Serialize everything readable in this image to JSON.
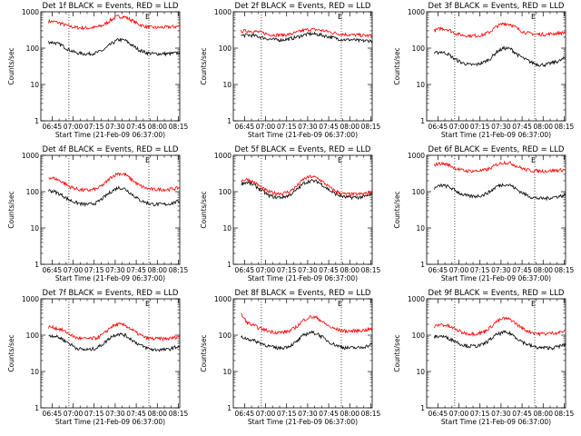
{
  "figure": {
    "panels": [
      {
        "title": "Det 1f BLACK = Events, RED = LLD",
        "flag": "E"
      },
      {
        "title": "Det 2f BLACK = Events, RED = LLD",
        "flag": "E"
      },
      {
        "title": "Det 3f BLACK = Events, RED = LLD",
        "flag": "E"
      },
      {
        "title": "Det 4f BLACK = Events, RED = LLD",
        "flag": "E"
      },
      {
        "title": "Det 5f BLACK = Events, RED = LLD",
        "flag": "E"
      },
      {
        "title": "Det 6f BLACK = Events, RED = LLD",
        "flag": "E"
      },
      {
        "title": "Det 7f BLACK = Events, RED = LLD",
        "flag": "E"
      },
      {
        "title": "Det 8f BLACK = Events, RED = LLD",
        "flag": "E"
      },
      {
        "title": "Det 9f BLACK = Events, RED = LLD",
        "flag": "E"
      }
    ]
  },
  "chart_data": {
    "type": "line",
    "layout": "3x3 grid",
    "xlabel": "Start Time (21-Feb-09 06:37:00)",
    "ylabel": "Counts/sec",
    "x_ticks": [
      "06:45",
      "07:00",
      "07:15",
      "07:30",
      "07:45",
      "08:00",
      "08:15"
    ],
    "x_tick_minutes": [
      8,
      23,
      38,
      53,
      68,
      83,
      98
    ],
    "xlim_minutes": [
      0,
      99
    ],
    "y_scale": "log",
    "ylim": [
      1,
      1000
    ],
    "y_ticks": [
      1,
      10,
      100,
      1000
    ],
    "y_tick_labels": [
      "1",
      "10",
      "100",
      "1000"
    ],
    "dotted_vertical_lines": [
      "06:57",
      "07:54"
    ],
    "dotted_line_minutes": [
      20,
      77
    ],
    "colors": {
      "events": "#000000",
      "lld": "#ff0000"
    },
    "x_minutes": [
      0,
      5,
      10,
      15,
      20,
      25,
      30,
      35,
      40,
      45,
      50,
      55,
      60,
      65,
      70,
      75,
      80,
      85,
      90,
      95,
      99
    ],
    "panels": [
      {
        "detector": "1f",
        "events": [
          null,
          150,
          140,
          120,
          90,
          75,
          70,
          70,
          75,
          90,
          130,
          170,
          165,
          120,
          90,
          75,
          70,
          70,
          70,
          72,
          75
        ],
        "lld": [
          null,
          550,
          530,
          470,
          400,
          370,
          360,
          360,
          380,
          440,
          600,
          750,
          720,
          580,
          450,
          390,
          370,
          370,
          380,
          390,
          400
        ]
      },
      {
        "detector": "2f",
        "events": [
          null,
          220,
          230,
          220,
          200,
          180,
          170,
          170,
          180,
          200,
          230,
          250,
          240,
          220,
          200,
          180,
          170,
          170,
          160,
          160,
          160
        ],
        "lld": [
          null,
          290,
          300,
          290,
          270,
          240,
          230,
          230,
          240,
          270,
          310,
          330,
          320,
          300,
          270,
          250,
          240,
          230,
          230,
          220,
          220
        ]
      },
      {
        "detector": "3f",
        "events": [
          null,
          70,
          80,
          70,
          50,
          40,
          35,
          35,
          40,
          50,
          80,
          100,
          95,
          65,
          50,
          40,
          35,
          35,
          40,
          45,
          55
        ],
        "lld": [
          null,
          300,
          350,
          330,
          260,
          230,
          220,
          220,
          230,
          280,
          400,
          480,
          450,
          340,
          270,
          250,
          240,
          240,
          250,
          260,
          270
        ]
      },
      {
        "detector": "4f",
        "events": [
          null,
          110,
          100,
          80,
          60,
          50,
          45,
          45,
          50,
          70,
          100,
          130,
          120,
          85,
          60,
          50,
          45,
          45,
          45,
          50,
          55
        ],
        "lld": [
          null,
          250,
          230,
          190,
          140,
          120,
          110,
          110,
          120,
          160,
          250,
          320,
          300,
          210,
          150,
          125,
          115,
          115,
          115,
          120,
          130
        ]
      },
      {
        "detector": "5f",
        "events": [
          null,
          170,
          180,
          150,
          110,
          80,
          70,
          70,
          80,
          110,
          170,
          200,
          190,
          140,
          100,
          80,
          70,
          70,
          70,
          75,
          85
        ],
        "lld": [
          null,
          200,
          220,
          180,
          130,
          100,
          90,
          90,
          100,
          140,
          220,
          260,
          240,
          170,
          120,
          95,
          85,
          85,
          85,
          90,
          100
        ]
      },
      {
        "detector": "6f",
        "events": [
          null,
          120,
          150,
          140,
          110,
          85,
          75,
          75,
          80,
          100,
          140,
          160,
          150,
          110,
          85,
          70,
          65,
          65,
          70,
          75,
          80
        ],
        "lld": [
          null,
          550,
          600,
          560,
          450,
          390,
          370,
          370,
          380,
          430,
          560,
          640,
          610,
          490,
          410,
          380,
          370,
          370,
          380,
          390,
          400
        ]
      },
      {
        "detector": "7f",
        "events": [
          null,
          100,
          95,
          80,
          60,
          45,
          40,
          40,
          45,
          60,
          90,
          110,
          100,
          75,
          55,
          45,
          40,
          40,
          40,
          45,
          50
        ],
        "lld": [
          null,
          170,
          160,
          140,
          110,
          85,
          80,
          80,
          85,
          110,
          170,
          200,
          190,
          140,
          105,
          85,
          80,
          80,
          80,
          85,
          95
        ]
      },
      {
        "detector": "8f",
        "events": [
          null,
          90,
          80,
          70,
          60,
          50,
          45,
          45,
          50,
          65,
          100,
          120,
          110,
          80,
          60,
          50,
          45,
          45,
          45,
          50,
          55
        ],
        "lld": [
          null,
          400,
          220,
          180,
          150,
          130,
          120,
          120,
          130,
          170,
          260,
          320,
          300,
          210,
          160,
          140,
          130,
          130,
          135,
          140,
          150
        ]
      },
      {
        "detector": "9f",
        "events": [
          null,
          90,
          95,
          85,
          70,
          55,
          50,
          50,
          55,
          75,
          105,
          120,
          110,
          80,
          60,
          50,
          45,
          45,
          45,
          50,
          55
        ],
        "lld": [
          null,
          170,
          200,
          180,
          150,
          120,
          110,
          110,
          120,
          160,
          240,
          290,
          270,
          190,
          140,
          120,
          110,
          110,
          115,
          120,
          130
        ]
      }
    ]
  }
}
